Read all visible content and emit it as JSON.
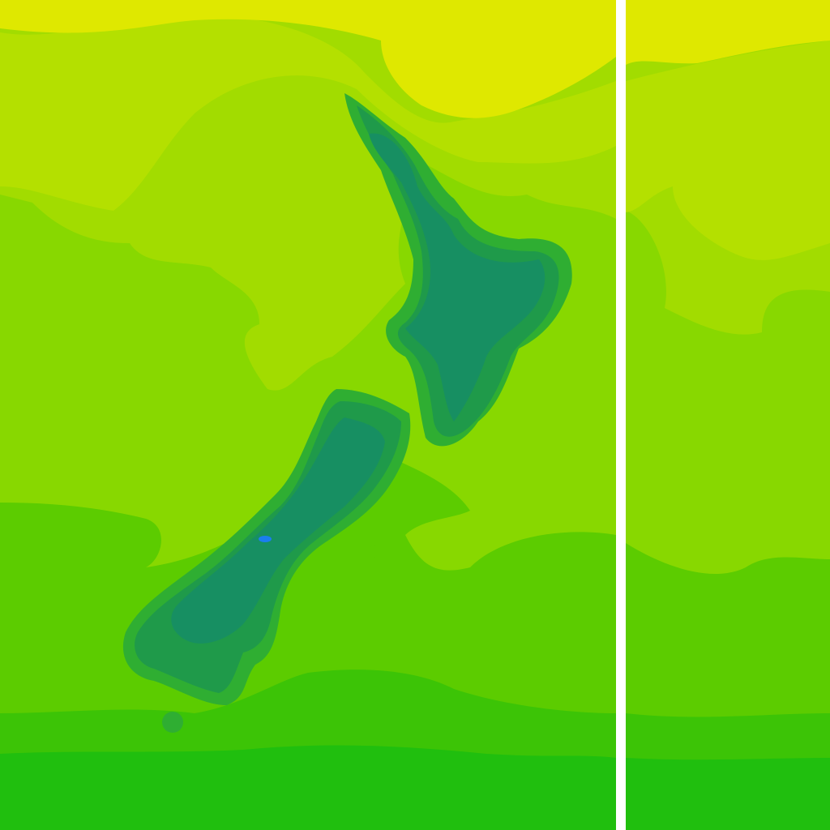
{
  "map": {
    "region": "New Zealand",
    "colors": {
      "band_1": "#dfe800",
      "band_2": "#b4e000",
      "band_3": "#a2dc00",
      "band_4": "#88d800",
      "band_5": "#5ccc00",
      "band_6": "#3cc406",
      "band_7": "#20bf0e",
      "land_edge": "#2fae32",
      "land_mid": "#1f9a4a",
      "land_core": "#178f62",
      "peak": "#1a7ef0",
      "tile_seam": "#ffffff"
    }
  }
}
